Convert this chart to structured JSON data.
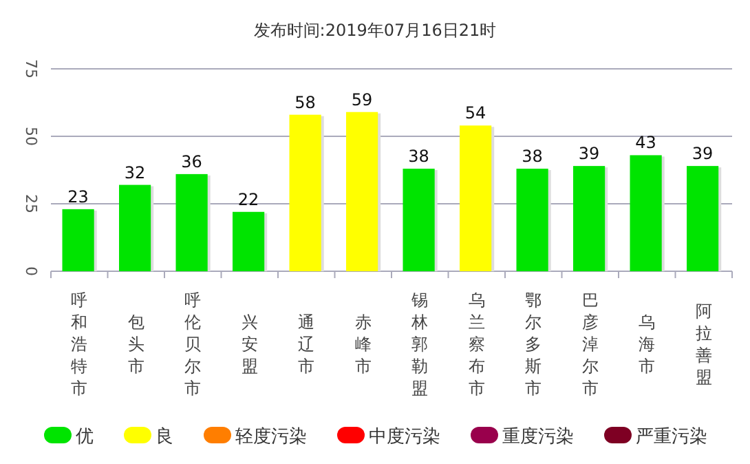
{
  "chart_data": {
    "type": "bar",
    "title": "发布时间:2019年07月16日21时",
    "categories": [
      "呼和浩特市",
      "包头市",
      "呼伦贝尔市",
      "兴安盟",
      "通辽市",
      "赤峰市",
      "锡林郭勒盟",
      "乌兰察布市",
      "鄂尔多斯市",
      "巴彦淖尔市",
      "乌海市",
      "阿拉善盟"
    ],
    "stacked": true,
    "series": [
      {
        "name": "优",
        "color": "#00e400",
        "values": [
          23,
          32,
          36,
          22,
          null,
          null,
          38,
          null,
          38,
          39,
          43,
          39
        ]
      },
      {
        "name": "良",
        "color": "#ffff00",
        "values": [
          null,
          null,
          null,
          null,
          58,
          59,
          null,
          54,
          null,
          null,
          null,
          null
        ]
      },
      {
        "name": "轻度污染",
        "color": "#ff7e00",
        "values": [
          null,
          null,
          null,
          null,
          null,
          null,
          null,
          null,
          null,
          null,
          null,
          null
        ]
      },
      {
        "name": "中度污染",
        "color": "#ff0000",
        "values": [
          null,
          null,
          null,
          null,
          null,
          null,
          null,
          null,
          null,
          null,
          null,
          null
        ]
      },
      {
        "name": "重度污染",
        "color": "#99004c",
        "values": [
          null,
          null,
          null,
          null,
          null,
          null,
          null,
          null,
          null,
          null,
          null,
          null
        ]
      },
      {
        "name": "严重污染",
        "color": "#7e0023",
        "values": [
          null,
          null,
          null,
          null,
          null,
          null,
          null,
          null,
          null,
          null,
          null,
          null
        ]
      }
    ],
    "ylim": [
      0,
      75
    ],
    "yticks": [
      0,
      25,
      50,
      75
    ],
    "grid": "y",
    "data_labels": true,
    "legend": "bottom"
  }
}
